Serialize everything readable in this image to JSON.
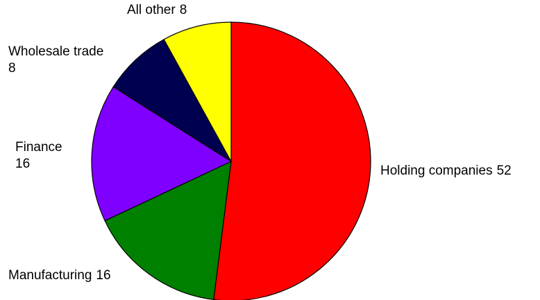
{
  "chart_data": {
    "type": "pie",
    "categories": [
      "Holding companies",
      "Manufacturing",
      "Finance",
      "Wholesale trade",
      "All other"
    ],
    "values": [
      52,
      16,
      16,
      8,
      8
    ],
    "colors": [
      "#ff0000",
      "#008000",
      "#8000ff",
      "#000050",
      "#ffff00"
    ]
  }
}
